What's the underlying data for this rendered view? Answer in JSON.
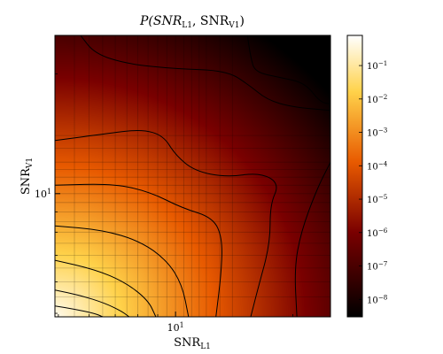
{
  "chart_data": {
    "type": "heatmap",
    "title": "P(SNR_L1, SNR_V1)",
    "title_parts": {
      "main": "P(SNR",
      "sub1": "L1",
      "sep": ", SNR",
      "sub2": "V1",
      "close": ")"
    },
    "xlabel": {
      "main": "SNR",
      "sub": "L1"
    },
    "ylabel": {
      "main": "SNR",
      "sub": "V1"
    },
    "x_scale": "log",
    "y_scale": "log",
    "xlim": [
      4.9,
      25
    ],
    "ylim": [
      4.9,
      25
    ],
    "x_ticks": [
      {
        "value": 10,
        "base": "10",
        "exp": "1"
      }
    ],
    "y_ticks": [
      {
        "value": 10,
        "base": "10",
        "exp": "1"
      }
    ],
    "grid": true,
    "grid_x": [
      5.5,
      6,
      6.5,
      7,
      7.5,
      8,
      8.5,
      9,
      9.5,
      10,
      10.5,
      11,
      11.5,
      12,
      13,
      14
    ],
    "grid_y": [
      5.5,
      6,
      6.5,
      7,
      7.5,
      8,
      8.5,
      9,
      9.5,
      10,
      10.5,
      11,
      11.5,
      12,
      13,
      14
    ],
    "colormap": "afmhot",
    "colorbar": {
      "scale": "log",
      "range": [
        3e-09,
        0.8
      ],
      "ticks": [
        {
          "value": 1e-08,
          "base": "10",
          "exp": "−8"
        },
        {
          "value": 1e-07,
          "base": "10",
          "exp": "−7"
        },
        {
          "value": 1e-06,
          "base": "10",
          "exp": "−6"
        },
        {
          "value": 1e-05,
          "base": "10",
          "exp": "−5"
        },
        {
          "value": 0.0001,
          "base": "10",
          "exp": "−4"
        },
        {
          "value": 0.001,
          "base": "10",
          "exp": "−3"
        },
        {
          "value": 0.01,
          "base": "10",
          "exp": "−2"
        },
        {
          "value": 0.1,
          "base": "10",
          "exp": "−1"
        }
      ]
    },
    "contours": [
      {
        "level": 0.1,
        "points": [
          [
            4.9,
            5.22
          ],
          [
            5.5,
            5.12
          ],
          [
            6.2,
            5.0
          ],
          [
            6.5,
            4.9
          ]
        ]
      },
      {
        "level": 0.01,
        "points": [
          [
            4.9,
            5.72
          ],
          [
            5.7,
            5.55
          ],
          [
            6.6,
            5.3
          ],
          [
            7.3,
            5.05
          ],
          [
            7.6,
            4.9
          ]
        ]
      },
      {
        "level": 0.001,
        "points": [
          [
            4.9,
            6.8
          ],
          [
            6.2,
            6.45
          ],
          [
            7.4,
            6.0
          ],
          [
            8.5,
            5.4
          ],
          [
            8.9,
            4.9
          ]
        ]
      },
      {
        "level": 0.0001,
        "points": [
          [
            4.9,
            8.3
          ],
          [
            6.5,
            8.1
          ],
          [
            8.1,
            7.6
          ],
          [
            9.5,
            6.8
          ],
          [
            10.4,
            5.9
          ],
          [
            10.8,
            4.9
          ]
        ]
      },
      {
        "level": 1e-05,
        "points": [
          [
            4.9,
            10.5
          ],
          [
            6.9,
            10.6
          ],
          [
            8.6,
            10.1
          ],
          [
            10.4,
            9.2
          ],
          [
            12.5,
            8.7
          ],
          [
            13.2,
            7.7
          ],
          [
            13.1,
            6.3
          ],
          [
            12.7,
            4.9
          ]
        ]
      },
      {
        "level": 1e-06,
        "points": [
          [
            4.9,
            13.6
          ],
          [
            6.8,
            14.2
          ],
          [
            8.2,
            14.5
          ],
          [
            9.3,
            14.0
          ],
          [
            10.0,
            12.5
          ],
          [
            11.2,
            11.4
          ],
          [
            13.5,
            11.0
          ],
          [
            16.5,
            11.3
          ],
          [
            18.5,
            10.6
          ],
          [
            17.5,
            9.4
          ],
          [
            17.5,
            7.5
          ],
          [
            16.3,
            5.8
          ],
          [
            15.6,
            4.9
          ]
        ]
      },
      {
        "level": 1e-07,
        "points": [
          [
            5.7,
            25
          ],
          [
            6.2,
            22.5
          ],
          [
            7.5,
            21.2
          ],
          [
            10,
            20.6
          ],
          [
            13.5,
            20.4
          ],
          [
            15.4,
            18.8
          ],
          [
            17.2,
            17.2
          ],
          [
            20,
            16.5
          ],
          [
            25,
            16.2
          ]
        ]
      },
      {
        "level": 1e-07,
        "points": [
          [
            25,
            12.0
          ],
          [
            23.0,
            10.2
          ],
          [
            21.0,
            8.0
          ],
          [
            20.2,
            6.5
          ],
          [
            20.5,
            4.9
          ]
        ]
      },
      {
        "level": 1e-08,
        "points": [
          [
            15.3,
            25
          ],
          [
            15.6,
            22.0
          ],
          [
            16.0,
            20.2
          ],
          [
            18.5,
            19.6
          ],
          [
            21.5,
            19.0
          ],
          [
            23.5,
            17.0
          ],
          [
            25,
            16.8
          ]
        ]
      }
    ]
  }
}
